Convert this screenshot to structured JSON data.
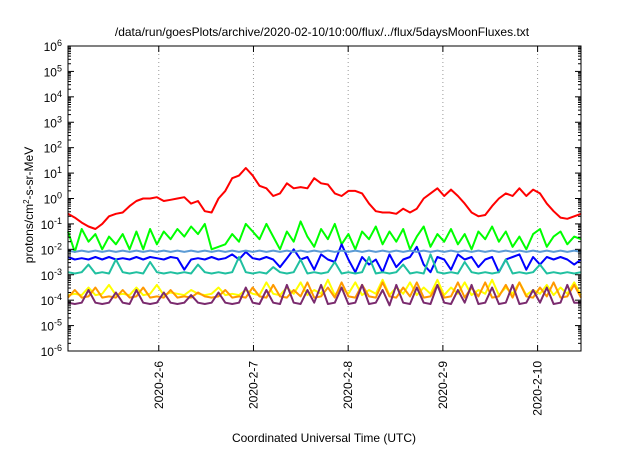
{
  "chart_data": {
    "type": "line",
    "title": "/data/run/goesPlots/archive/2020-02-10/10:00/flux/../flux/5daysMoonFluxes.txt",
    "xlabel": "Coordinated Universal Time (UTC)",
    "ylabel": {
      "base": "protons/cm",
      "sup": "2",
      "rest": "-s-sr-MeV"
    },
    "y_scale": "log",
    "ylim_exponents": [
      -6,
      6
    ],
    "y_tick_base": "10",
    "y_ticks": [
      "-6",
      "-5",
      "-4",
      "-3",
      "-2",
      "-1",
      "0",
      "1",
      "2",
      "3",
      "4",
      "5",
      "6"
    ],
    "x_range_days": [
      "2020-02-05 01:00",
      "2020-02-10 11:00"
    ],
    "x_ticks": [
      "2020-2-6",
      "2020-2-7",
      "2020-2-8",
      "2020-2-9",
      "2020-2-10"
    ],
    "grid": "vertical dotted at x ticks",
    "legend": "none",
    "series": [
      {
        "color": "#ff0000",
        "values_log10": [
          -0.6,
          -0.75,
          -0.95,
          -1.1,
          -1.2,
          -1.0,
          -0.7,
          -0.6,
          -0.55,
          -0.3,
          -0.1,
          0.0,
          0.0,
          0.05,
          -0.1,
          -0.05,
          0.0,
          0.05,
          -0.2,
          -0.1,
          -0.5,
          -0.55,
          0.0,
          0.3,
          0.8,
          0.9,
          1.2,
          0.9,
          0.5,
          0.4,
          0.1,
          0.2,
          0.6,
          0.4,
          0.45,
          0.4,
          0.8,
          0.6,
          0.55,
          0.2,
          0.1,
          0.3,
          0.3,
          0.2,
          -0.2,
          -0.5,
          -0.55,
          -0.55,
          -0.6,
          -0.4,
          -0.55,
          -0.4,
          0.0,
          0.2,
          0.4,
          0.1,
          0.35,
          0.1,
          -0.2,
          -0.55,
          -0.7,
          -0.65,
          -0.3,
          0.0,
          0.2,
          0.1,
          0.4,
          0.1,
          0.35,
          0.2,
          -0.2,
          -0.5,
          -0.75,
          -0.8,
          -0.7,
          -0.6
        ]
      },
      {
        "color": "#00ff00",
        "values_log10": [
          -1.3,
          -2.1,
          -1.2,
          -1.7,
          -1.4,
          -2.0,
          -1.5,
          -1.8,
          -1.4,
          -2.0,
          -1.3,
          -2.0,
          -1.2,
          -1.8,
          -1.3,
          -1.6,
          -1.2,
          -1.5,
          -1.1,
          -1.4,
          -1.0,
          -2.0,
          -1.9,
          -1.8,
          -1.4,
          -1.7,
          -1.0,
          -1.3,
          -1.6,
          -1.0,
          -1.5,
          -2.0,
          -1.3,
          -1.7,
          -0.9,
          -1.5,
          -1.9,
          -1.2,
          -1.6,
          -1.0,
          -1.8,
          -1.4,
          -2.0,
          -1.3,
          -1.6,
          -1.1,
          -1.8,
          -1.3,
          -1.7,
          -1.2,
          -2.0,
          -1.5,
          -1.1,
          -1.9,
          -1.4,
          -1.7,
          -1.2,
          -1.8,
          -1.4,
          -2.0,
          -1.3,
          -1.6,
          -1.1,
          -1.7,
          -1.3,
          -1.9,
          -1.5,
          -2.0,
          -1.4,
          -1.2,
          -1.9,
          -1.5,
          -1.3,
          -1.8,
          -1.5,
          -1.6
        ]
      },
      {
        "color": "#0000ff",
        "values_log10": [
          -2.3,
          -2.4,
          -2.35,
          -2.4,
          -2.3,
          -2.4,
          -2.3,
          -2.4,
          -2.35,
          -2.4,
          -2.3,
          -2.4,
          -2.3,
          -2.35,
          -2.4,
          -2.3,
          -2.35,
          -2.8,
          -2.4,
          -2.35,
          -2.4,
          -2.3,
          -2.4,
          -2.35,
          -2.2,
          -2.4,
          -2.1,
          -2.35,
          -2.4,
          -2.3,
          -2.4,
          -2.7,
          -2.35,
          -2.0,
          -2.4,
          -2.3,
          -2.8,
          -2.2,
          -2.4,
          -2.5,
          -1.8,
          -2.4,
          -2.9,
          -2.3,
          -2.6,
          -2.4,
          -2.9,
          -2.2,
          -2.7,
          -2.4,
          -2.3,
          -1.9,
          -2.6,
          -2.9,
          -2.3,
          -2.4,
          -2.8,
          -2.2,
          -2.4,
          -2.3,
          -2.7,
          -2.4,
          -2.3,
          -2.9,
          -2.4,
          -2.3,
          -2.2,
          -2.8,
          -2.3,
          -2.6,
          -2.3,
          -2.4,
          -2.3,
          -2.4,
          -2.6,
          -2.4
        ]
      },
      {
        "color": "#5b9bd5",
        "values_log10": [
          -2.05,
          -2.1,
          -2.05,
          -2.1,
          -2.05,
          -2.1,
          -2.05,
          -2.1,
          -2.05,
          -2.1,
          -2.05,
          -2.1,
          -2.05,
          -2.1,
          -2.05,
          -2.1,
          -2.05,
          -2.1,
          -2.05,
          -2.1,
          -2.05,
          -2.1,
          -2.05,
          -2.1,
          -2.05,
          -2.1,
          -2.05,
          -2.1,
          -2.05,
          -2.1,
          -2.05,
          -2.1,
          -2.05,
          -2.1,
          -2.05,
          -2.1,
          -2.05,
          -2.1,
          -2.05,
          -2.1,
          -2.05,
          -2.1,
          -2.05,
          -2.1,
          -2.05,
          -2.1,
          -2.05,
          -2.1,
          -2.05,
          -2.1,
          -2.05,
          -2.1,
          -2.05,
          -2.1,
          -2.05,
          -2.1,
          -2.05,
          -2.1,
          -2.05,
          -2.1,
          -2.05,
          -2.1,
          -2.05,
          -2.1,
          -2.05,
          -2.1,
          -2.05,
          -2.1,
          -2.05,
          -2.1,
          -2.05,
          -2.1,
          -2.05,
          -2.1,
          -2.05,
          -2.1
        ]
      },
      {
        "color": "#20c0a0",
        "values_log10": [
          -2.9,
          -2.95,
          -2.9,
          -2.6,
          -2.95,
          -2.9,
          -2.95,
          -2.4,
          -2.9,
          -2.95,
          -2.9,
          -2.95,
          -2.5,
          -2.9,
          -2.95,
          -2.9,
          -2.95,
          -2.9,
          -2.95,
          -2.6,
          -2.9,
          -2.95,
          -2.9,
          -2.95,
          -2.9,
          -2.3,
          -2.9,
          -2.95,
          -2.9,
          -2.95,
          -2.7,
          -2.9,
          -2.95,
          -2.9,
          -2.4,
          -2.95,
          -2.9,
          -2.95,
          -2.9,
          -2.5,
          -2.95,
          -2.9,
          -2.95,
          -2.9,
          -2.3,
          -2.95,
          -2.9,
          -2.95,
          -2.9,
          -2.6,
          -2.95,
          -2.9,
          -2.95,
          -2.2,
          -2.9,
          -2.95,
          -2.9,
          -2.95,
          -2.5,
          -2.9,
          -2.95,
          -2.9,
          -2.95,
          -2.9,
          -2.4,
          -2.95,
          -2.9,
          -2.95,
          -2.9,
          -2.6,
          -2.95,
          -2.9,
          -2.95,
          -2.9,
          -2.95,
          -2.9
        ]
      },
      {
        "color": "#ffff00",
        "values_log10": [
          -3.8,
          -3.75,
          -3.8,
          -3.5,
          -3.8,
          -3.75,
          -3.4,
          -3.8,
          -3.75,
          -3.8,
          -3.5,
          -3.8,
          -3.75,
          -3.4,
          -3.8,
          -3.7,
          -3.75,
          -3.8,
          -3.6,
          -3.75,
          -3.8,
          -3.75,
          -3.5,
          -3.8,
          -3.75,
          -3.8,
          -3.6,
          -3.75,
          -3.8,
          -3.3,
          -3.75,
          -3.8,
          -3.5,
          -3.75,
          -3.3,
          -3.8,
          -3.6,
          -3.75,
          -3.2,
          -3.8,
          -3.5,
          -3.75,
          -3.3,
          -3.8,
          -3.6,
          -3.75,
          -3.2,
          -3.8,
          -3.5,
          -3.75,
          -3.3,
          -3.8,
          -3.5,
          -3.75,
          -3.2,
          -3.8,
          -3.5,
          -3.75,
          -3.3,
          -3.8,
          -3.6,
          -3.75,
          -3.2,
          -3.8,
          -3.5,
          -3.75,
          -3.3,
          -3.8,
          -3.6,
          -3.75,
          -3.4,
          -3.8,
          -3.5,
          -3.75,
          -3.3,
          -3.8
        ]
      },
      {
        "color": "#ff9900",
        "values_log10": [
          -3.9,
          -3.6,
          -3.9,
          -3.85,
          -3.5,
          -3.9,
          -3.85,
          -3.9,
          -3.6,
          -3.9,
          -3.85,
          -3.5,
          -3.9,
          -3.85,
          -3.9,
          -3.6,
          -3.9,
          -3.85,
          -3.9,
          -3.7,
          -3.85,
          -3.9,
          -3.85,
          -3.6,
          -3.9,
          -3.85,
          -3.9,
          -3.5,
          -3.85,
          -3.9,
          -3.4,
          -3.85,
          -3.9,
          -3.6,
          -3.85,
          -3.3,
          -3.9,
          -3.85,
          -3.5,
          -3.9,
          -3.3,
          -3.85,
          -3.9,
          -3.4,
          -3.85,
          -3.9,
          -3.3,
          -3.85,
          -3.9,
          -3.5,
          -3.85,
          -3.3,
          -3.9,
          -3.85,
          -3.4,
          -3.9,
          -3.85,
          -3.3,
          -3.9,
          -3.5,
          -3.85,
          -3.3,
          -3.9,
          -3.85,
          -3.4,
          -3.9,
          -3.3,
          -3.85,
          -3.9,
          -3.5,
          -3.85,
          -3.3,
          -3.9,
          -3.85,
          -3.4,
          -3.9
        ]
      },
      {
        "color": "#7a2a6e",
        "values_log10": [
          -4.1,
          -4.15,
          -4.1,
          -3.6,
          -4.1,
          -4.15,
          -4.1,
          -3.7,
          -4.1,
          -4.15,
          -3.6,
          -4.1,
          -4.15,
          -4.1,
          -3.7,
          -4.1,
          -4.15,
          -4.1,
          -3.8,
          -4.1,
          -4.15,
          -4.1,
          -3.7,
          -4.1,
          -4.15,
          -4.1,
          -3.5,
          -4.1,
          -4.15,
          -3.6,
          -4.1,
          -4.15,
          -3.4,
          -4.1,
          -4.15,
          -3.6,
          -4.1,
          -3.4,
          -4.15,
          -4.1,
          -3.5,
          -4.15,
          -4.1,
          -3.4,
          -4.15,
          -4.1,
          -3.6,
          -4.2,
          -3.4,
          -4.1,
          -4.15,
          -3.5,
          -4.1,
          -4.15,
          -3.4,
          -4.1,
          -4.15,
          -3.6,
          -4.1,
          -3.4,
          -4.15,
          -4.1,
          -3.5,
          -4.15,
          -4.1,
          -3.4,
          -4.15,
          -4.1,
          -3.6,
          -4.1,
          -3.5,
          -4.15,
          -4.1,
          -3.4,
          -4.1,
          -4.1
        ]
      }
    ]
  }
}
